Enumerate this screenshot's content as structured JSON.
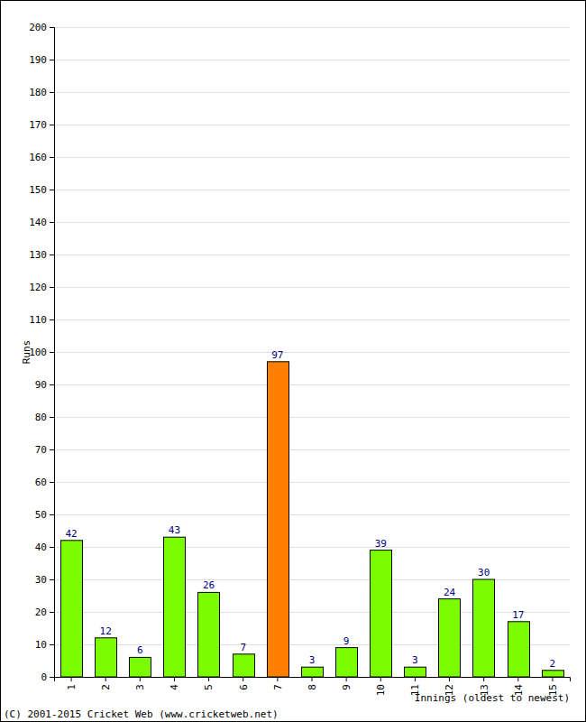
{
  "chart_data": {
    "type": "bar",
    "categories": [
      "1",
      "2",
      "3",
      "4",
      "5",
      "6",
      "7",
      "8",
      "9",
      "10",
      "11",
      "12",
      "13",
      "14",
      "15"
    ],
    "values": [
      42,
      12,
      6,
      43,
      26,
      7,
      97,
      3,
      9,
      39,
      3,
      24,
      30,
      17,
      2
    ],
    "colors": [
      "#7cfc00",
      "#7cfc00",
      "#7cfc00",
      "#7cfc00",
      "#7cfc00",
      "#7cfc00",
      "#ff8000",
      "#7cfc00",
      "#7cfc00",
      "#7cfc00",
      "#7cfc00",
      "#7cfc00",
      "#7cfc00",
      "#7cfc00",
      "#7cfc00"
    ],
    "ylim": [
      0,
      200
    ],
    "yticks": [
      0,
      10,
      20,
      30,
      40,
      50,
      60,
      70,
      80,
      90,
      100,
      110,
      120,
      130,
      140,
      150,
      160,
      170,
      180,
      190,
      200
    ],
    "grid": true,
    "data_labels": true,
    "y_label": "Runs",
    "x_label": "Innings (oldest to newest)",
    "annotations": [
      "(C) 2001-2015 Cricket Web (www.cricketweb.net)"
    ]
  }
}
